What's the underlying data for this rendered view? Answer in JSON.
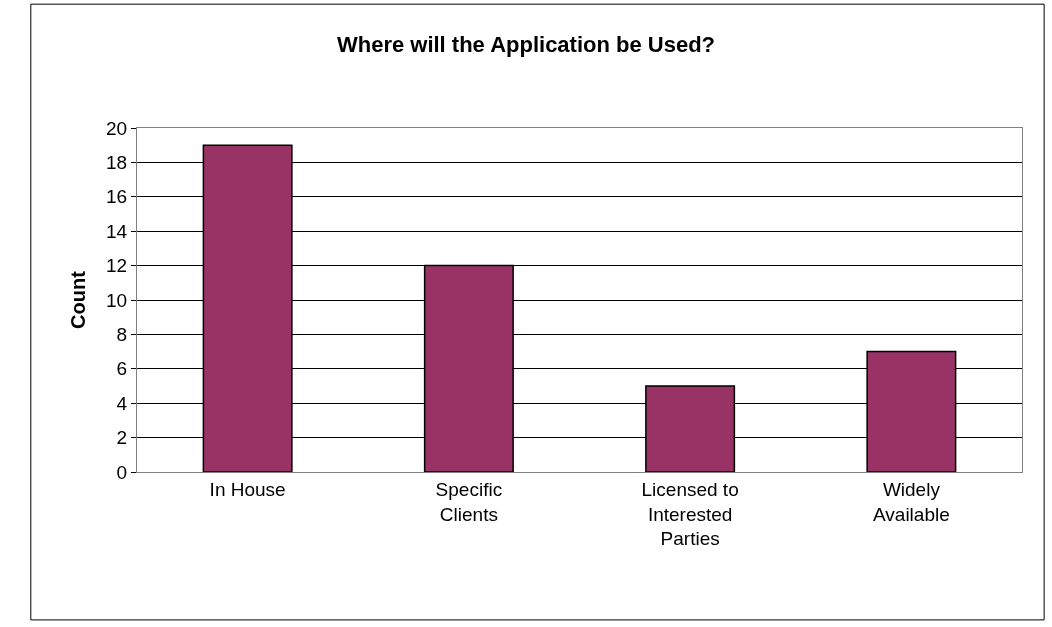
{
  "chart_data": {
    "type": "bar",
    "title": "Where will the Application be Used?",
    "ylabel": "Count",
    "categories": [
      "In House",
      "Specific Clients",
      "Licensed to Interested Parties",
      "Widely Available"
    ],
    "values": [
      19,
      12,
      5,
      7
    ],
    "color": "#993366",
    "ylim": [
      0,
      20
    ],
    "yticks": [
      0,
      2,
      4,
      6,
      8,
      10,
      12,
      14,
      16,
      18,
      20
    ],
    "grid": "y",
    "legend": false
  }
}
